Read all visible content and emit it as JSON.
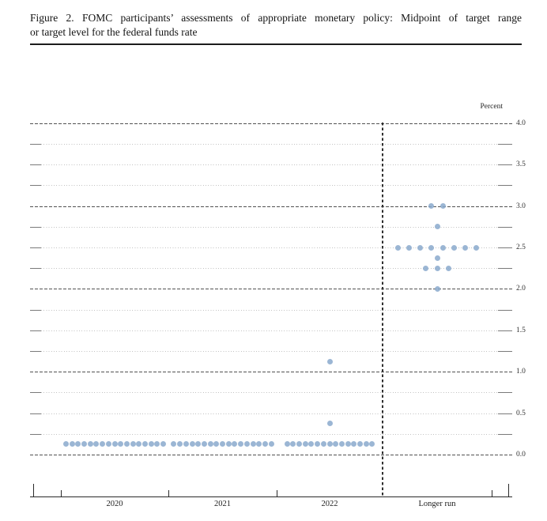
{
  "figure": {
    "title_line1": "Figure 2.  FOMC participants’ assessments of appropriate monetary policy:  Midpoint of target range",
    "title_line2": "or target level for the federal funds rate"
  },
  "chart_data": {
    "type": "scatter",
    "title": "FOMC participants’ assessments of appropriate monetary policy: Midpoint of target range or target level for the federal funds rate",
    "unit_label": "Percent",
    "ylabel": "Percent",
    "ylim": [
      0.0,
      4.0
    ],
    "y_minor_step": 0.25,
    "y_major_step": 1.0,
    "y_label_step": 0.5,
    "y_axis_labels": [
      "4.0",
      "3.5",
      "3.0",
      "2.5",
      "2.0",
      "1.5",
      "1.0",
      "0.5",
      "0.0"
    ],
    "categories": [
      "2020",
      "2021",
      "2022",
      "Longer run"
    ],
    "separator": "dashed vertical line between 2022 and Longer run",
    "grid": true,
    "legend": "none",
    "dot_color": "#89a9cc",
    "series": [
      {
        "category": "2020",
        "dots": [
          {
            "rate": 0.125,
            "count": 17
          }
        ]
      },
      {
        "category": "2021",
        "dots": [
          {
            "rate": 0.125,
            "count": 17
          }
        ]
      },
      {
        "category": "2022",
        "dots": [
          {
            "rate": 0.125,
            "count": 15
          },
          {
            "rate": 0.375,
            "count": 1
          },
          {
            "rate": 1.125,
            "count": 1
          }
        ]
      },
      {
        "category": "Longer run",
        "dots": [
          {
            "rate": 2.0,
            "count": 1
          },
          {
            "rate": 2.25,
            "count": 3
          },
          {
            "rate": 2.375,
            "count": 1
          },
          {
            "rate": 2.5,
            "count": 8
          },
          {
            "rate": 2.75,
            "count": 1
          },
          {
            "rate": 3.0,
            "count": 2
          }
        ]
      }
    ]
  }
}
